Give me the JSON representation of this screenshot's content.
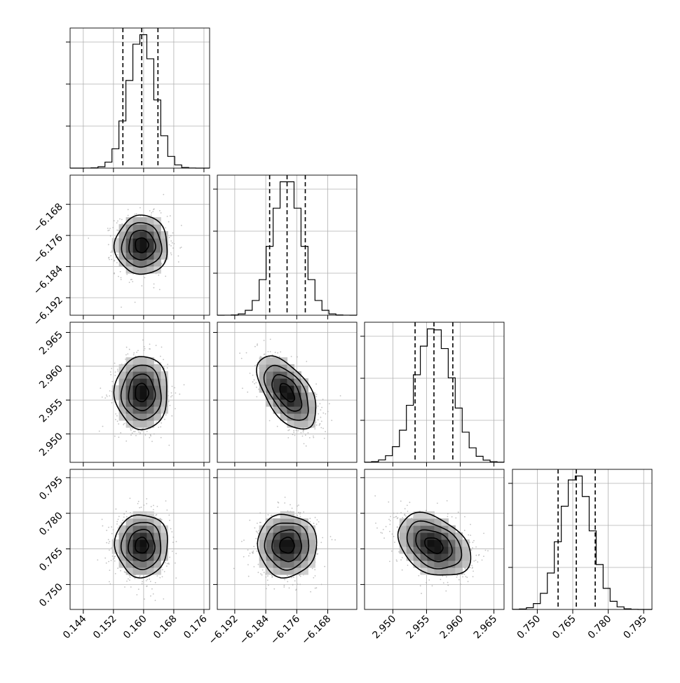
{
  "chart_data": {
    "type": "corner",
    "parameters": [
      {
        "label": "",
        "mean": 0.1595,
        "std": 0.0035,
        "quantiles": [
          0.1545,
          0.1595,
          0.1638
        ],
        "range": [
          0.1405,
          0.1775
        ],
        "ticks": [
          "0.144",
          "0.152",
          "0.160",
          "0.168",
          "0.176"
        ],
        "tick_values": [
          0.144,
          0.152,
          0.16,
          0.168,
          0.176
        ]
      },
      {
        "label": "",
        "mean": -6.1785,
        "std": 0.0038,
        "quantiles": [
          -6.183,
          -6.1785,
          -6.1738
        ],
        "range": [
          -6.1965,
          -6.1605
        ],
        "ticks": [
          "−6.192",
          "−6.184",
          "−6.176",
          "−6.168"
        ],
        "tick_values": [
          -6.192,
          -6.184,
          -6.176,
          -6.168
        ]
      },
      {
        "label": "",
        "mean": 2.9561,
        "std": 0.0027,
        "quantiles": [
          2.9533,
          2.9561,
          2.9589
        ],
        "range": [
          2.9458,
          2.9665
        ],
        "ticks": [
          "2.950",
          "2.955",
          "2.960",
          "2.965"
        ],
        "tick_values": [
          2.95,
          2.955,
          2.96,
          2.965
        ]
      },
      {
        "label": "",
        "mean": 0.7665,
        "std": 0.0066,
        "quantiles": [
          0.7588,
          0.7665,
          0.7745
        ],
        "range": [
          0.7395,
          0.7985
        ],
        "ticks": [
          "0.750",
          "0.765",
          "0.780",
          "0.795"
        ],
        "tick_values": [
          0.75,
          0.765,
          0.78,
          0.795
        ]
      }
    ],
    "correlations": [
      {
        "x": 0,
        "y": 1,
        "rho": 0.0
      },
      {
        "x": 0,
        "y": 2,
        "rho": 0.0
      },
      {
        "x": 1,
        "y": 2,
        "rho": -0.55
      },
      {
        "x": 0,
        "y": 3,
        "rho": 0.0
      },
      {
        "x": 1,
        "y": 3,
        "rho": 0.0
      },
      {
        "x": 2,
        "y": 3,
        "rho": -0.35
      }
    ],
    "contour_levels_sigma": [
      0.5,
      1.0,
      1.5,
      2.0
    ],
    "histogram_bins": 20,
    "quantile_line_style": "dashed",
    "grid": true,
    "show_samples": true
  }
}
